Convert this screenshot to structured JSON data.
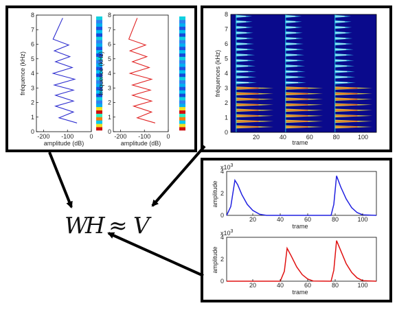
{
  "formula": {
    "w": "W",
    "h": "H",
    "approx": "≈",
    "v": "V"
  },
  "spectra": {
    "ylabel": "fréquence (kHz)",
    "xlabel": "amplitude (dB)",
    "yticks": [
      "0",
      "1",
      "2",
      "3",
      "4",
      "5",
      "6",
      "7",
      "8"
    ],
    "xticks": [
      "-200",
      "-100",
      "0"
    ],
    "ylim": [
      0,
      8
    ],
    "xlim": [
      -230,
      0
    ],
    "colors": {
      "left": "#2c2ccf",
      "right": "#e02020"
    }
  },
  "spectrogram": {
    "ylabel": "fréquences (kHz)",
    "xlabel": "trame",
    "yticks": [
      "0",
      "1",
      "2",
      "3",
      "4",
      "5",
      "6",
      "7",
      "8"
    ],
    "xticks": [
      "20",
      "40",
      "60",
      "80",
      "100"
    ],
    "xlim": [
      1,
      110
    ],
    "ylim": [
      0,
      8
    ]
  },
  "activations": {
    "ylabel": "amplitude",
    "xlabel": "trame",
    "exponent": "x10",
    "exponent_power": "3",
    "yticks": [
      "0",
      "2",
      "4"
    ],
    "xticks": [
      "20",
      "40",
      "60",
      "80",
      "100"
    ],
    "xlim": [
      1,
      110
    ],
    "ylim": [
      0,
      4
    ],
    "colors": {
      "top": "#1f1fe0",
      "bottom": "#e01010"
    }
  },
  "chart_data": [
    {
      "type": "line",
      "id": "spectrum-left",
      "xlabel": "amplitude (dB)",
      "ylabel": "fréquence (kHz)",
      "xlim": [
        -230,
        0
      ],
      "ylim": [
        0,
        8
      ],
      "series": [
        {
          "x": [
            -60,
            -135,
            -75,
            -150,
            -75,
            -150,
            -75,
            -155,
            -70,
            -160,
            -80,
            -150,
            -90,
            -155,
            -95,
            -160,
            -120
          ],
          "y": [
            0.6,
            0.95,
            1.35,
            1.75,
            2.1,
            2.5,
            2.85,
            3.2,
            3.6,
            4.0,
            4.4,
            4.8,
            5.15,
            5.55,
            5.95,
            6.35,
            7.8
          ]
        }
      ]
    },
    {
      "type": "line",
      "id": "spectrum-right",
      "xlabel": "amplitude (dB)",
      "ylabel": "fréquence (kHz)",
      "xlim": [
        -230,
        0
      ],
      "ylim": [
        0,
        8
      ],
      "series": [
        {
          "x": [
            -55,
            -130,
            -70,
            -145,
            -70,
            -150,
            -75,
            -150,
            -70,
            -160,
            -80,
            -150,
            -90,
            -160,
            -95,
            -165,
            -130
          ],
          "y": [
            0.6,
            0.95,
            1.35,
            1.75,
            2.1,
            2.5,
            2.85,
            3.2,
            3.6,
            4.0,
            4.4,
            4.8,
            5.15,
            5.55,
            5.95,
            6.35,
            7.8
          ]
        }
      ]
    },
    {
      "type": "heatmap",
      "id": "spectrogram",
      "xlabel": "trame",
      "ylabel": "fréquences (kHz)",
      "xlim": [
        1,
        110
      ],
      "ylim": [
        0,
        8
      ],
      "onsets": [
        5,
        42,
        79
      ],
      "harmonics_khz": [
        0.37,
        0.75,
        1.12,
        1.5,
        1.87,
        2.25,
        2.62,
        3.0,
        3.37,
        3.75,
        4.12,
        4.5,
        4.87,
        5.25,
        5.62,
        6.0,
        6.37,
        6.75,
        7.12,
        7.5,
        7.87
      ]
    },
    {
      "type": "line",
      "id": "activation-top",
      "xlabel": "trame",
      "ylabel": "amplitude",
      "xlim": [
        1,
        110
      ],
      "ylim": [
        0,
        4
      ],
      "series": [
        {
          "x": [
            1,
            4,
            7,
            9,
            12,
            16,
            20,
            25,
            30,
            77,
            79,
            81,
            84,
            88,
            92,
            96,
            100,
            110
          ],
          "y": [
            0,
            0.8,
            3.2,
            2.8,
            1.9,
            1.0,
            0.45,
            0.1,
            0,
            0,
            1.0,
            3.6,
            2.6,
            1.5,
            0.7,
            0.25,
            0.05,
            0
          ]
        }
      ]
    },
    {
      "type": "line",
      "id": "activation-bottom",
      "xlabel": "trame",
      "ylabel": "amplitude",
      "xlim": [
        1,
        110
      ],
      "ylim": [
        0,
        4
      ],
      "series": [
        {
          "x": [
            1,
            40,
            43,
            45,
            48,
            52,
            56,
            60,
            64,
            77,
            79,
            81,
            84,
            88,
            92,
            96,
            100,
            110
          ],
          "y": [
            0,
            0,
            0.9,
            3.0,
            2.3,
            1.3,
            0.6,
            0.2,
            0.02,
            0,
            1.0,
            3.7,
            2.8,
            1.6,
            0.8,
            0.3,
            0.05,
            0
          ]
        }
      ]
    }
  ]
}
